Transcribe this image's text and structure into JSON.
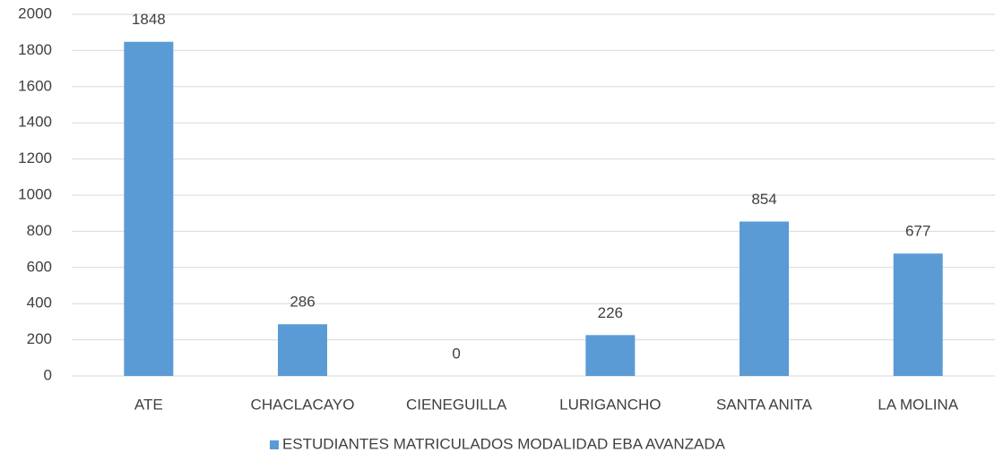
{
  "chart_data": {
    "type": "bar",
    "categories": [
      "ATE",
      "CHACLACAYO",
      "CIENEGUILLA",
      "LURIGANCHO",
      "SANTA ANITA",
      "LA MOLINA"
    ],
    "series": [
      {
        "name": "ESTUDIANTES MATRICULADOS MODALIDAD EBA AVANZADA",
        "color": "#5b9bd5",
        "values": [
          1848,
          286,
          0,
          226,
          854,
          677
        ]
      }
    ],
    "ylim": [
      0,
      2000
    ],
    "yticks": [
      0,
      200,
      400,
      600,
      800,
      1000,
      1200,
      1400,
      1600,
      1800,
      2000
    ],
    "grid": true,
    "legend": "bottom"
  }
}
